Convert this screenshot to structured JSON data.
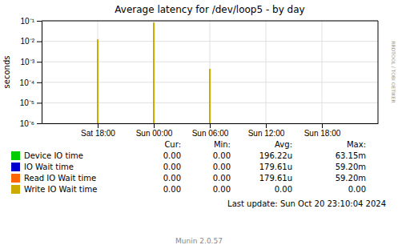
{
  "chart_data": {
    "type": "bar",
    "title": "Average latency for /dev/loop5 - by day",
    "y_label": "seconds",
    "log": "y",
    "grid": true,
    "xlim": [
      0,
      129600
    ],
    "xticks": [
      {
        "value": 21600,
        "label": "Sat 18:00"
      },
      {
        "value": 43200,
        "label": "Sun 00:00"
      },
      {
        "value": 64800,
        "label": "Sun 06:00"
      },
      {
        "value": 86400,
        "label": "Sun 12:00"
      },
      {
        "value": 108000,
        "label": "Sun 18:00"
      }
    ],
    "ylim": [
      1e-06,
      0.1
    ],
    "yticks": [
      {
        "value": 1e-06,
        "label": "10⁻⁶"
      },
      {
        "value": 1e-05,
        "label": "10⁻⁵"
      },
      {
        "value": 0.0001,
        "label": "10⁻⁴"
      },
      {
        "value": 0.001,
        "label": "10⁻³"
      },
      {
        "value": 0.01,
        "label": "10⁻²"
      },
      {
        "value": 0.1,
        "label": "10⁻¹"
      }
    ],
    "series": [
      {
        "name": "Device IO time",
        "color": "#00cc00",
        "x": [
          64800
        ],
        "values": [
          0.00045
        ]
      },
      {
        "name": "IO Wait time",
        "color": "#0000cc",
        "x": [],
        "values": []
      },
      {
        "name": "Read IO Wait time",
        "color": "#ff6600",
        "x": [
          21600,
          43200
        ],
        "values": [
          0.012,
          0.08
        ]
      },
      {
        "name": "Write IO Wait time",
        "color": "#ccaa00",
        "x": [
          21600,
          43200,
          64800
        ],
        "values": [
          0.012,
          0.08,
          0.00045
        ]
      }
    ],
    "table": {
      "headers": [
        "Cur:",
        "Min:",
        "Avg:",
        "Max:"
      ],
      "rows": [
        [
          "0.00",
          "0.00",
          "196.22u",
          "63.15m"
        ],
        [
          "0.00",
          "0.00",
          "179.61u",
          "59.20m"
        ],
        [
          "0.00",
          "0.00",
          "179.61u",
          "59.20m"
        ],
        [
          "0.00",
          "0.00",
          "0.00",
          "0.00"
        ]
      ]
    },
    "annotations": [
      "Last update: Sun Oct 20 23:10:04 2024",
      "Munin 2.0.57",
      "RRDTOOL / TOBI OETIKER"
    ]
  }
}
